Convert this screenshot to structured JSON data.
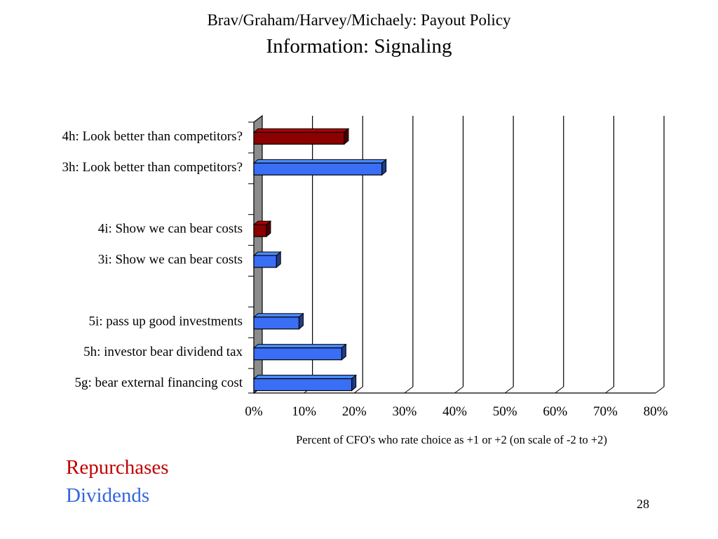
{
  "slide": {
    "title": "Brav/Graham/Harvey/Michaely: Payout Policy",
    "subtitle": "Information: Signaling",
    "page_number": "28"
  },
  "colors": {
    "repurchases": "#8b0000",
    "dividends": "#3a6ef5",
    "repurchases_text": "#c00000",
    "dividends_text": "#3366dd"
  },
  "legend": {
    "repurchases": "Repurchases",
    "dividends": "Dividends"
  },
  "chart_data": {
    "type": "bar",
    "orientation": "horizontal",
    "title": "",
    "xlabel": "Percent of CFO's who rate choice as +1 or +2 (on scale of -2  to +2)",
    "ylabel": "",
    "xlim": [
      0,
      80
    ],
    "xticks": [
      "0%",
      "10%",
      "20%",
      "30%",
      "40%",
      "50%",
      "60%",
      "70%",
      "80%"
    ],
    "grid": true,
    "bars": [
      {
        "label": "4h: Look better than competitors?",
        "value": 18,
        "series": "Repurchases"
      },
      {
        "label": "3h: Look better than competitors?",
        "value": 25.5,
        "series": "Dividends"
      },
      {
        "label": "",
        "value": null,
        "series": null
      },
      {
        "label": "4i: Show we can bear costs",
        "value": 2.5,
        "series": "Repurchases"
      },
      {
        "label": "3i: Show we can bear costs",
        "value": 4.5,
        "series": "Dividends"
      },
      {
        "label": "",
        "value": null,
        "series": null
      },
      {
        "label": "5i: pass up good investments",
        "value": 9,
        "series": "Dividends"
      },
      {
        "label": "5h: investor bear dividend tax",
        "value": 17.5,
        "series": "Dividends"
      },
      {
        "label": "5g: bear external financing cost",
        "value": 19.5,
        "series": "Dividends"
      }
    ]
  }
}
